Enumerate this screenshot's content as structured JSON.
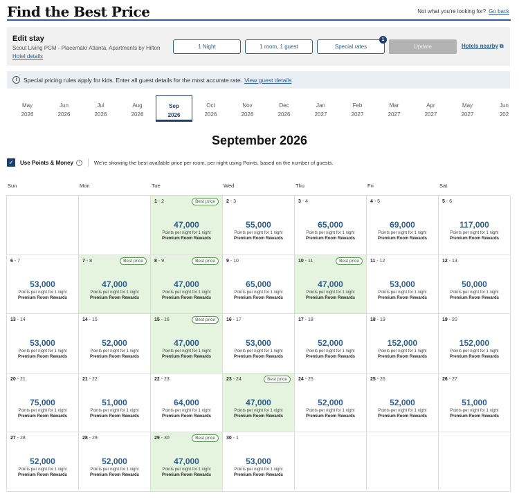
{
  "header": {
    "title": "Find the Best Price",
    "not_looking": "Not what you're looking for?",
    "go_back": "Go back"
  },
  "edit_stay": {
    "title": "Edit stay",
    "hotel_name": "Scout Living PCM - Placemakr Atlanta, Apartments by Hilton",
    "hotel_details": "Hotel details",
    "nights": "1 Night",
    "rooms_guests": "1 room, 1 guest",
    "special_rates": "Special rates",
    "special_rates_count": "1",
    "update": "Update",
    "hotels_nearby": "Hotels nearby"
  },
  "notice": {
    "text": "Special pricing rules apply for kids. Enter all guest details for the most accurate rate.",
    "link": "View guest details"
  },
  "months": [
    {
      "month": "May",
      "year": "2026"
    },
    {
      "month": "Jun",
      "year": "2026"
    },
    {
      "month": "Jul",
      "year": "2026"
    },
    {
      "month": "Aug",
      "year": "2026"
    },
    {
      "month": "Sep",
      "year": "2026",
      "active": true
    },
    {
      "month": "Oct",
      "year": "2026"
    },
    {
      "month": "Nov",
      "year": "2026"
    },
    {
      "month": "Dec",
      "year": "2026"
    },
    {
      "month": "Jan",
      "year": "2027"
    },
    {
      "month": "Feb",
      "year": "2027"
    },
    {
      "month": "Mar",
      "year": "2027"
    },
    {
      "month": "Apr",
      "year": "2027"
    },
    {
      "month": "May",
      "year": "2027"
    },
    {
      "month": "Jun",
      "year": "202"
    }
  ],
  "calendar_title": "September 2026",
  "points": {
    "label": "Use Points & Money",
    "description": "We're showing the best available price per room, per night using Points, based on the number of guests."
  },
  "days_of_week": [
    "Sun",
    "Mon",
    "Tue",
    "Wed",
    "Thu",
    "Fri",
    "Sat"
  ],
  "cell_sub": "Points per night for 1 night",
  "cell_rate": "Premium Room Rewards",
  "best_label": "Best price",
  "days": [
    {
      "start": "1",
      "end": "2",
      "price": "47,000",
      "best": true
    },
    {
      "start": "2",
      "end": "3",
      "price": "55,000",
      "best": false
    },
    {
      "start": "3",
      "end": "4",
      "price": "65,000",
      "best": false
    },
    {
      "start": "4",
      "end": "5",
      "price": "69,000",
      "best": false
    },
    {
      "start": "5",
      "end": "6",
      "price": "117,000",
      "best": false
    },
    {
      "start": "6",
      "end": "7",
      "price": "53,000",
      "best": false
    },
    {
      "start": "7",
      "end": "8",
      "price": "47,000",
      "best": true
    },
    {
      "start": "8",
      "end": "9",
      "price": "47,000",
      "best": true
    },
    {
      "start": "9",
      "end": "10",
      "price": "65,000",
      "best": false
    },
    {
      "start": "10",
      "end": "11",
      "price": "47,000",
      "best": true
    },
    {
      "start": "11",
      "end": "12",
      "price": "53,000",
      "best": false
    },
    {
      "start": "12",
      "end": "13",
      "price": "50,000",
      "best": false
    },
    {
      "start": "13",
      "end": "14",
      "price": "53,000",
      "best": false
    },
    {
      "start": "14",
      "end": "15",
      "price": "52,000",
      "best": false
    },
    {
      "start": "15",
      "end": "16",
      "price": "47,000",
      "best": true
    },
    {
      "start": "16",
      "end": "17",
      "price": "53,000",
      "best": false
    },
    {
      "start": "17",
      "end": "18",
      "price": "52,000",
      "best": false
    },
    {
      "start": "18",
      "end": "19",
      "price": "152,000",
      "best": false
    },
    {
      "start": "19",
      "end": "20",
      "price": "152,000",
      "best": false
    },
    {
      "start": "20",
      "end": "21",
      "price": "75,000",
      "best": false
    },
    {
      "start": "21",
      "end": "22",
      "price": "51,000",
      "best": false
    },
    {
      "start": "22",
      "end": "23",
      "price": "64,000",
      "best": false
    },
    {
      "start": "23",
      "end": "24",
      "price": "47,000",
      "best": true
    },
    {
      "start": "24",
      "end": "25",
      "price": "52,000",
      "best": false
    },
    {
      "start": "25",
      "end": "26",
      "price": "52,000",
      "best": false
    },
    {
      "start": "26",
      "end": "27",
      "price": "51,000",
      "best": false
    },
    {
      "start": "27",
      "end": "28",
      "price": "52,000",
      "best": false
    },
    {
      "start": "28",
      "end": "29",
      "price": "52,000",
      "best": false
    },
    {
      "start": "29",
      "end": "30",
      "price": "47,000",
      "best": true
    },
    {
      "start": "30",
      "end": "1",
      "price": "53,000",
      "best": false
    }
  ],
  "colors": {
    "accent": "#2b5f93",
    "navy": "#1c3e6e",
    "best_bg": "#e4f4df"
  }
}
